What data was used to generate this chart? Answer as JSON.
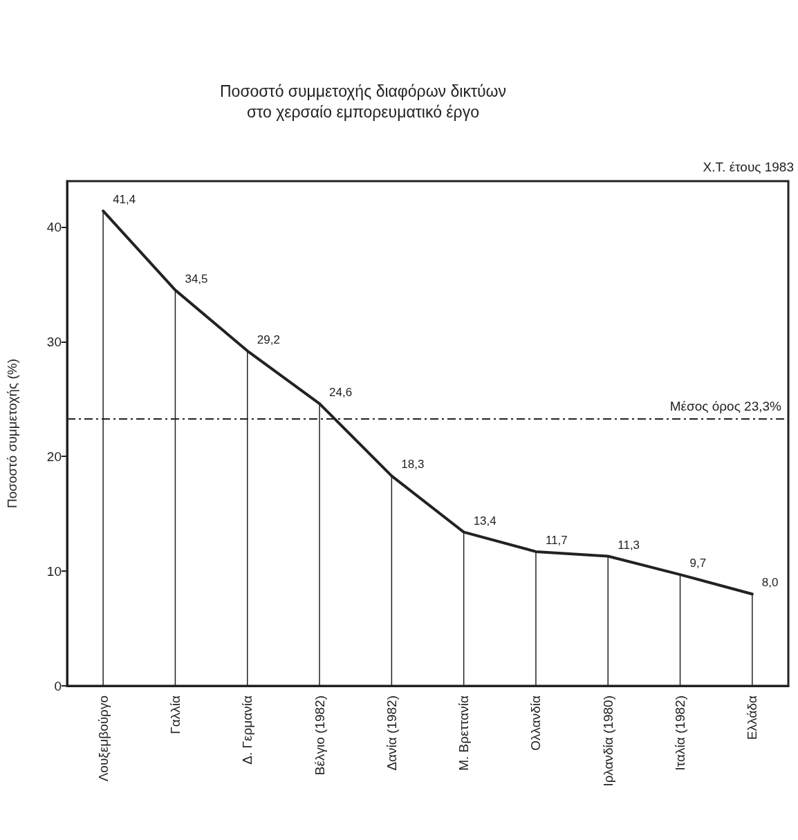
{
  "chart_data": {
    "type": "line",
    "title": "Ποσοστό συμμετοχής διαφόρων δικτύων\nστο χερσαίο εμπορευματικό έργο",
    "ylabel": "Ποσοστό συμμετοχής (%)",
    "annotations": [
      "Χ.Τ. έτους 1983"
    ],
    "categories": [
      "Λουξεμβούργο",
      "Γαλλία",
      "Δ. Γερμανία",
      "Βέλγιο (1982)",
      "Δανία (1982)",
      "Μ. Βρεττανία",
      "Ολλανδία",
      "Ιρλανδία (1980)",
      "Ιταλία (1982)",
      "Ελλάδα"
    ],
    "series": [
      {
        "color": "#222222",
        "values": [
          41.4,
          34.5,
          29.2,
          24.6,
          18.3,
          13.4,
          11.7,
          11.3,
          9.7,
          8.0
        ],
        "value_labels": [
          "41,4",
          "34,5",
          "29,2",
          "24,6",
          "18,3",
          "13,4",
          "11,7",
          "11,3",
          "9,7",
          "8,0"
        ]
      },
      {
        "type": "bar",
        "color": "#222222",
        "values": [
          41.4,
          34.5,
          29.2,
          24.6,
          18.3,
          13.4,
          11.7,
          11.3,
          9.7,
          8.0
        ]
      }
    ],
    "ylim": [
      0,
      44
    ],
    "yticks": [
      0,
      10,
      20,
      30,
      40
    ],
    "grid": false,
    "marker": "none",
    "ref_lines": [
      {
        "axis": "y",
        "value": 23.3,
        "label": "Μέσος όρος 23,3%",
        "line_style": "dashed",
        "color": "#222222"
      }
    ]
  }
}
